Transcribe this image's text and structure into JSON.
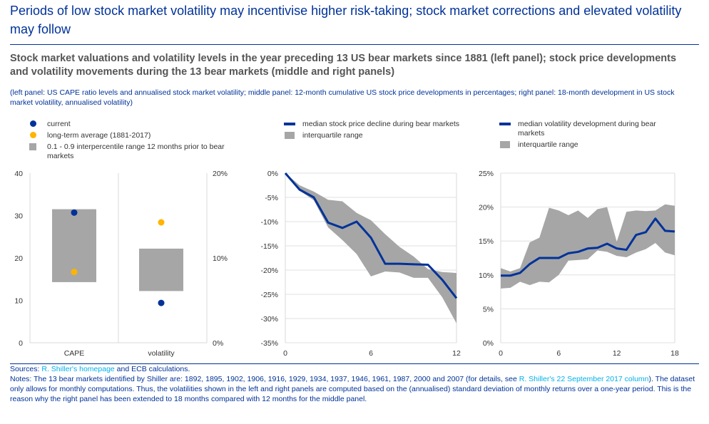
{
  "header": {
    "headline": "Periods of low stock market volatility may incentivise higher risk-taking; stock market corrections and elevated volatility may follow",
    "subtitle": "Stock market valuations and volatility levels in the year preceding 13 US bear markets since 1881 (left panel); stock price developments and volatility movements during the 13 bear markets (middle and right panels)",
    "note": "(left panel: US CAPE ratio levels and annualised stock market volatility; middle panel: 12-month cumulative US stock price developments in percentages; right panel: 18-month development in US stock market volatility, annualised volatility)"
  },
  "colors": {
    "navy": "#003299",
    "yellow": "#ffb400",
    "grey": "#a6a6a6",
    "link": "#00b1ea"
  },
  "chart_data": [
    {
      "type": "bar",
      "panel": "left",
      "legend": [
        "current",
        "long-term average (1881-2017)",
        "0.1 - 0.9 interpercentile range 12 months prior to bear markets"
      ],
      "categories": [
        "CAPE",
        "volatility"
      ],
      "y_left_ticks": [
        "0",
        "10",
        "20",
        "30",
        "40"
      ],
      "y_left_range": [
        0,
        40
      ],
      "y_right_ticks": [
        "0%",
        "10%",
        "20%"
      ],
      "y_right_range": [
        0,
        20
      ],
      "cape": {
        "range_low": 14.3,
        "range_high": 31.5,
        "current": 30.7,
        "long_term_average": 16.7
      },
      "volatility": {
        "range_low": 6.1,
        "range_high": 11.1,
        "current": 4.7,
        "long_term_average": 14.2
      }
    },
    {
      "type": "line",
      "panel": "middle",
      "legend": [
        "median stock price decline during bear markets",
        "interquartile range"
      ],
      "x_ticks": [
        "0",
        "6",
        "12"
      ],
      "x_range": [
        0,
        12
      ],
      "y_ticks": [
        "0%",
        "-5%",
        "-10%",
        "-15%",
        "-20%",
        "-25%",
        "-30%",
        "-35%"
      ],
      "y_range": [
        -35,
        0
      ],
      "x": [
        0,
        1,
        2,
        3,
        4,
        5,
        6,
        7,
        8,
        9,
        10,
        11,
        12
      ],
      "median": [
        0,
        -3.4,
        -5,
        -10.2,
        -11.3,
        -10,
        -13.3,
        -18.7,
        -18.7,
        -18.8,
        -18.9,
        -22,
        -25.8
      ],
      "iqr_upper": [
        0,
        -2.5,
        -3.8,
        -5.5,
        -5.8,
        -8.2,
        -9.7,
        -12.6,
        -15.2,
        -17.2,
        -19.8,
        -20.4,
        -20.6
      ],
      "iqr_lower": [
        0,
        -3.6,
        -5.6,
        -11.2,
        -13.8,
        -16.7,
        -21.3,
        -20.3,
        -20.5,
        -21.6,
        -21.6,
        -25.6,
        -31
      ]
    },
    {
      "type": "line",
      "panel": "right",
      "legend": [
        "median volatility development during bear markets",
        "interquartile range"
      ],
      "x_ticks": [
        "0",
        "6",
        "12",
        "18"
      ],
      "x_range": [
        0,
        18
      ],
      "y_ticks": [
        "25%",
        "20%",
        "15%",
        "10%",
        "5%",
        "0%"
      ],
      "y_range": [
        0,
        25
      ],
      "x": [
        0,
        1,
        2,
        3,
        4,
        5,
        6,
        7,
        8,
        9,
        10,
        11,
        12,
        13,
        14,
        15,
        16,
        17,
        18
      ],
      "median": [
        9.9,
        9.9,
        10.3,
        11.6,
        12.5,
        12.5,
        12.5,
        13.2,
        13.4,
        13.9,
        14,
        14.6,
        13.9,
        13.7,
        15.9,
        16.3,
        18.3,
        16.5,
        16.4
      ],
      "iqr_upper": [
        11,
        10.5,
        11,
        14.8,
        15.5,
        19.9,
        19.5,
        18.8,
        19.5,
        18.4,
        19.7,
        20,
        14.9,
        19.3,
        19.5,
        19.4,
        19.5,
        20.4,
        20.2
      ],
      "iqr_lower": [
        8,
        8.1,
        9,
        8.5,
        9,
        8.9,
        10,
        12.1,
        12.2,
        12.3,
        13.6,
        13.4,
        12.8,
        12.6,
        13.3,
        13.8,
        14.7,
        13.3,
        12.9
      ]
    }
  ],
  "footer": {
    "sources_prefix": "Sources: ",
    "sources_link": "R. Shiller's homepage",
    "sources_suffix": " and ECB calculations.",
    "notes_prefix": "Notes: The 13 bear markets identified by Shiller are: 1892, 1895, 1902, 1906, 1916, 1929, 1934, 1937, 1946, 1961, 1987, 2000 and 2007 (for details, see ",
    "notes_link": "R. Shiller's 22 September 2017 column",
    "notes_suffix": "). The dataset only allows for monthly computations. Thus, the volatilities shown in the left and right panels are computed based on the (annualised) standard deviation of monthly returns over a one-year period. This is the reason why the right panel has been extended to 18 months compared with 12 months for the middle panel."
  }
}
